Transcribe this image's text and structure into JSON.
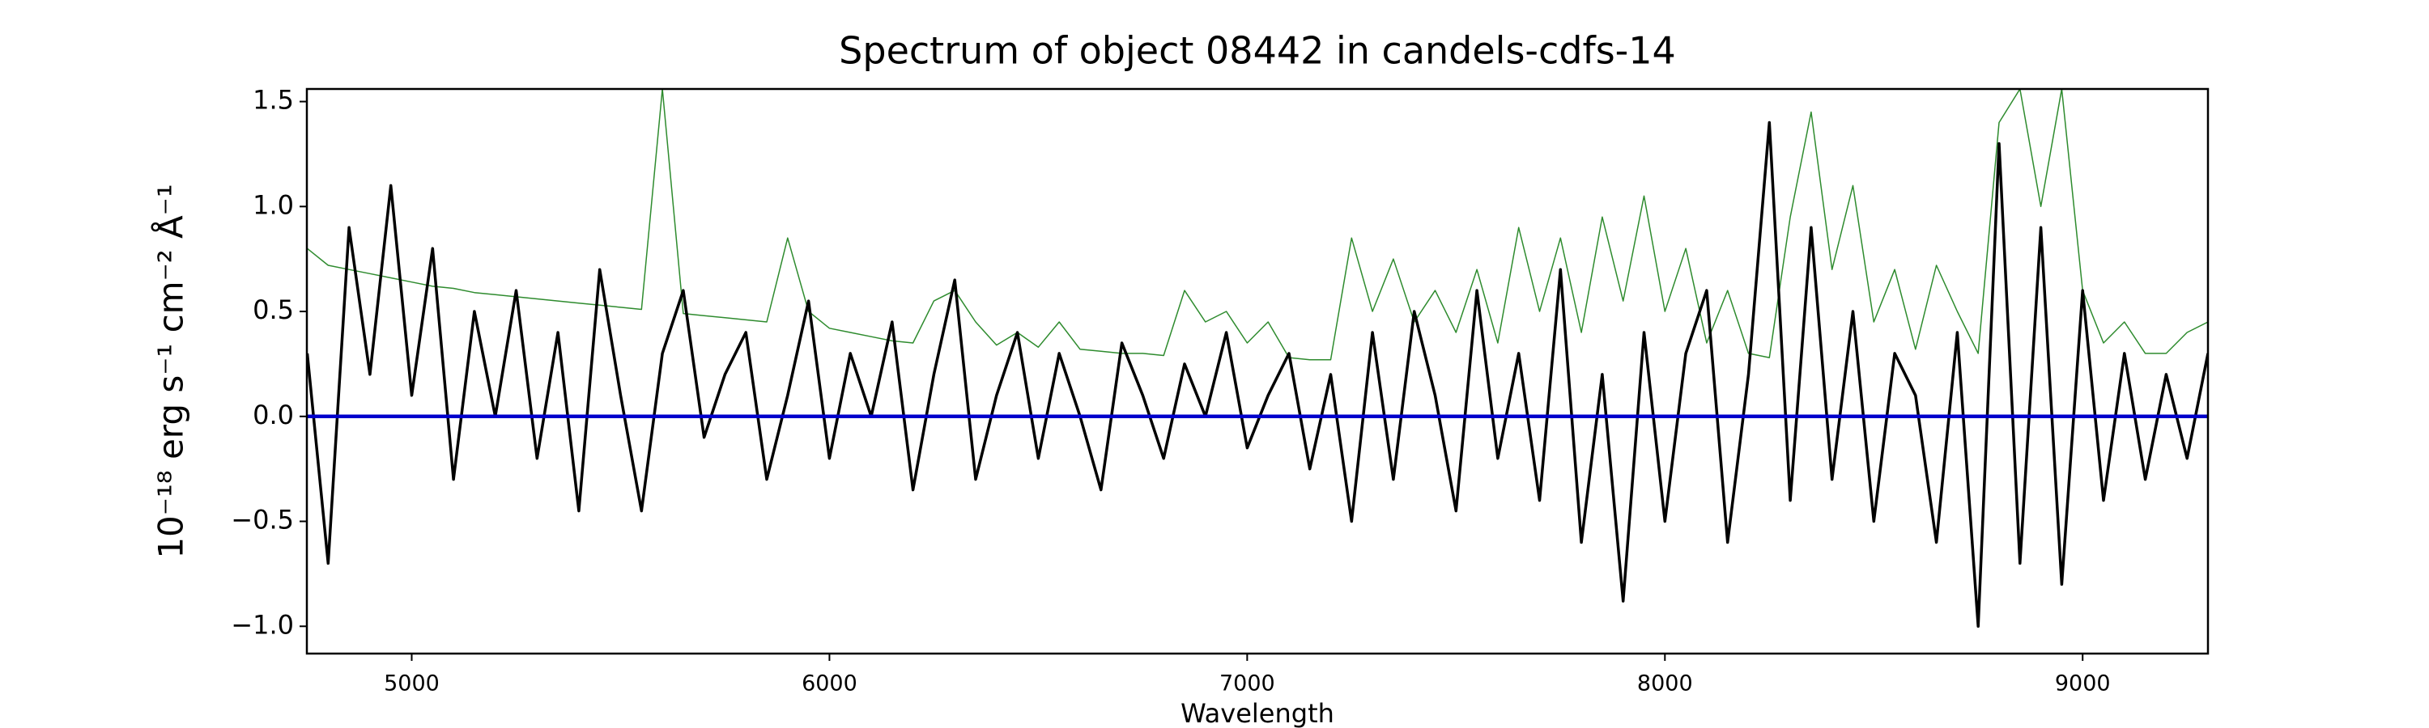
{
  "chart_data": {
    "type": "line",
    "title": "Spectrum of object 08442 in candels-cdfs-14",
    "xlabel": "Wavelength",
    "ylabel": "10⁻¹⁸ erg s⁻¹ cm⁻² Å⁻¹",
    "x": [
      4750,
      4800,
      4850,
      4900,
      4950,
      5000,
      5050,
      5100,
      5150,
      5200,
      5250,
      5300,
      5350,
      5400,
      5450,
      5500,
      5550,
      5600,
      5650,
      5700,
      5750,
      5800,
      5850,
      5900,
      5950,
      6000,
      6050,
      6100,
      6150,
      6200,
      6250,
      6300,
      6350,
      6400,
      6450,
      6500,
      6550,
      6600,
      6650,
      6700,
      6750,
      6800,
      6850,
      6900,
      6950,
      7000,
      7050,
      7100,
      7150,
      7200,
      7250,
      7300,
      7350,
      7400,
      7450,
      7500,
      7550,
      7600,
      7650,
      7700,
      7750,
      7800,
      7850,
      7900,
      7950,
      8000,
      8050,
      8100,
      8150,
      8200,
      8250,
      8300,
      8350,
      8400,
      8450,
      8500,
      8550,
      8600,
      8650,
      8700,
      8750,
      8800,
      8850,
      8900,
      8950,
      9000,
      9050,
      9100,
      9150,
      9200,
      9250,
      9300
    ],
    "series": [
      {
        "color": "#2e8b2e",
        "width": 1.5,
        "values": [
          0.8,
          0.72,
          0.7,
          0.68,
          0.66,
          0.64,
          0.62,
          0.61,
          0.59,
          0.58,
          0.57,
          0.56,
          0.55,
          0.54,
          0.53,
          0.52,
          0.51,
          1.56,
          0.49,
          0.48,
          0.47,
          0.46,
          0.45,
          0.85,
          0.5,
          0.42,
          0.4,
          0.38,
          0.36,
          0.35,
          0.55,
          0.6,
          0.45,
          0.34,
          0.4,
          0.33,
          0.45,
          0.32,
          0.31,
          0.3,
          0.3,
          0.29,
          0.6,
          0.45,
          0.5,
          0.35,
          0.45,
          0.28,
          0.27,
          0.27,
          0.85,
          0.5,
          0.75,
          0.45,
          0.6,
          0.4,
          0.7,
          0.35,
          0.9,
          0.5,
          0.85,
          0.4,
          0.95,
          0.55,
          1.05,
          0.5,
          0.8,
          0.35,
          0.6,
          0.3,
          0.28,
          0.95,
          1.45,
          0.7,
          1.1,
          0.45,
          0.7,
          0.32,
          0.72,
          0.5,
          0.3,
          1.4,
          1.56,
          1.0,
          1.56,
          0.6,
          0.35,
          0.45,
          0.3,
          0.3,
          0.4,
          0.45
        ]
      },
      {
        "color": "#000000",
        "width": 3.5,
        "values": [
          0.3,
          -0.7,
          0.9,
          0.2,
          1.1,
          0.1,
          0.8,
          -0.3,
          0.5,
          0.0,
          0.6,
          -0.2,
          0.4,
          -0.45,
          0.7,
          0.1,
          -0.45,
          0.3,
          0.6,
          -0.1,
          0.2,
          0.4,
          -0.3,
          0.1,
          0.55,
          -0.2,
          0.3,
          0.0,
          0.45,
          -0.35,
          0.2,
          0.65,
          -0.3,
          0.1,
          0.4,
          -0.2,
          0.3,
          0.0,
          -0.35,
          0.35,
          0.1,
          -0.2,
          0.25,
          0.0,
          0.4,
          -0.15,
          0.1,
          0.3,
          -0.25,
          0.2,
          -0.5,
          0.4,
          -0.3,
          0.5,
          0.1,
          -0.45,
          0.6,
          -0.2,
          0.3,
          -0.4,
          0.7,
          -0.6,
          0.2,
          -0.88,
          0.4,
          -0.5,
          0.3,
          0.6,
          -0.6,
          0.2,
          1.4,
          -0.4,
          0.9,
          -0.3,
          0.5,
          -0.5,
          0.3,
          0.1,
          -0.6,
          0.4,
          -1.0,
          1.3,
          -0.7,
          0.9,
          -0.8,
          0.6,
          -0.4,
          0.3,
          -0.3,
          0.2,
          -0.2,
          0.3
        ]
      },
      {
        "color": "#0000cc",
        "width": 4.5,
        "values": [
          0,
          0,
          0,
          0,
          0,
          0,
          0,
          0,
          0,
          0,
          0,
          0,
          0,
          0,
          0,
          0,
          0,
          0,
          0,
          0,
          0,
          0,
          0,
          0,
          0,
          0,
          0,
          0,
          0,
          0,
          0,
          0,
          0,
          0,
          0,
          0,
          0,
          0,
          0,
          0,
          0,
          0,
          0,
          0,
          0,
          0,
          0,
          0,
          0,
          0,
          0,
          0,
          0,
          0,
          0,
          0,
          0,
          0,
          0,
          0,
          0,
          0,
          0,
          0,
          0,
          0,
          0,
          0,
          0,
          0,
          0,
          0,
          0,
          0,
          0,
          0,
          0,
          0,
          0,
          0,
          0,
          0,
          0,
          0,
          0,
          0,
          0,
          0,
          0,
          0,
          0,
          0
        ]
      }
    ],
    "xlim": [
      4749,
      9300
    ],
    "ylim": [
      -1.13,
      1.56
    ],
    "xticks": [
      5000,
      6000,
      7000,
      8000,
      9000
    ],
    "yticks": [
      {
        "value": -1.0,
        "label": "−1.0"
      },
      {
        "value": -0.5,
        "label": "−0.5"
      },
      {
        "value": 0.0,
        "label": "0.0"
      },
      {
        "value": 0.5,
        "label": "0.5"
      },
      {
        "value": 1.0,
        "label": "1.0"
      },
      {
        "value": 1.5,
        "label": "1.5"
      }
    ]
  }
}
